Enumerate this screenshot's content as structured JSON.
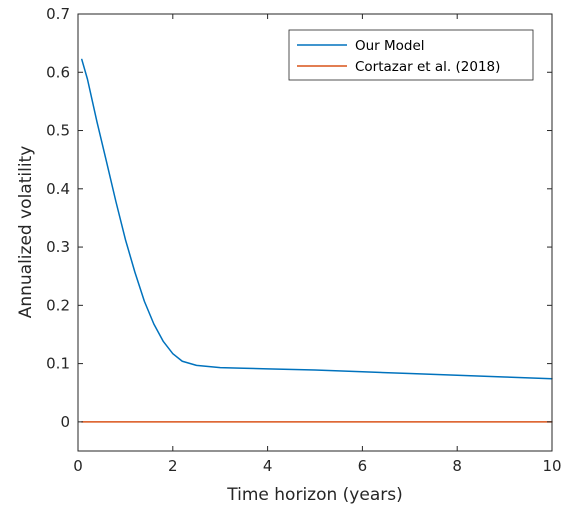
{
  "chart_data": {
    "type": "line",
    "xlabel": "Time horizon (years)",
    "ylabel": "Annualized volatility",
    "xlim": [
      0,
      10
    ],
    "ylim": [
      -0.05,
      0.7
    ],
    "xticks": [
      0,
      2,
      4,
      6,
      8,
      10
    ],
    "yticks": [
      0,
      0.1,
      0.2,
      0.3,
      0.4,
      0.5,
      0.6,
      0.7
    ],
    "xtick_labels": [
      "0",
      "2",
      "4",
      "6",
      "8",
      "10"
    ],
    "ytick_labels": [
      "0",
      "0.1",
      "0.2",
      "0.3",
      "0.4",
      "0.5",
      "0.6",
      "0.7"
    ],
    "grid": false,
    "legend_position": "top-right",
    "series": [
      {
        "name": "Our Model",
        "color": "#0072BD",
        "x": [
          0.08,
          0.2,
          0.4,
          0.6,
          0.8,
          1.0,
          1.2,
          1.4,
          1.6,
          1.8,
          2.0,
          2.2,
          2.5,
          3.0,
          3.5,
          4.0,
          5.0,
          6.0,
          7.0,
          8.0,
          9.0,
          10.0
        ],
        "values": [
          0.622,
          0.588,
          0.515,
          0.447,
          0.378,
          0.313,
          0.257,
          0.207,
          0.168,
          0.138,
          0.117,
          0.104,
          0.097,
          0.093,
          0.092,
          0.091,
          0.089,
          0.086,
          0.083,
          0.08,
          0.077,
          0.074
        ]
      },
      {
        "name": "Cortazar et al. (2018)",
        "color": "#D95319",
        "x": [
          0.08,
          10.0
        ],
        "values": [
          0.0,
          0.0
        ]
      }
    ]
  }
}
